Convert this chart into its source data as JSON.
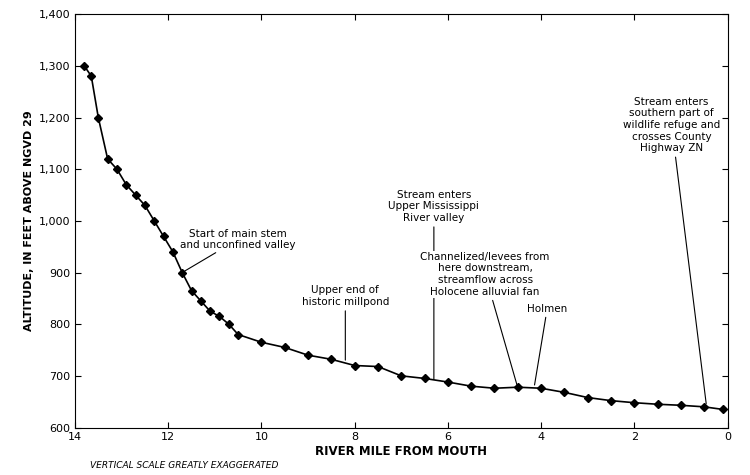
{
  "x": [
    13.8,
    13.65,
    13.5,
    13.3,
    13.1,
    12.9,
    12.7,
    12.5,
    12.3,
    12.1,
    11.9,
    11.7,
    11.5,
    11.3,
    11.1,
    10.9,
    10.7,
    10.5,
    10.0,
    9.5,
    9.0,
    8.5,
    8.0,
    7.5,
    7.0,
    6.5,
    6.0,
    5.5,
    5.0,
    4.5,
    4.0,
    3.5,
    3.0,
    2.5,
    2.0,
    1.5,
    1.0,
    0.5,
    0.1
  ],
  "y": [
    1300,
    1280,
    1200,
    1120,
    1100,
    1070,
    1050,
    1030,
    1000,
    970,
    940,
    900,
    865,
    845,
    825,
    815,
    800,
    780,
    765,
    755,
    740,
    732,
    720,
    718,
    700,
    695,
    688,
    680,
    676,
    678,
    676,
    668,
    658,
    652,
    648,
    645,
    643,
    640,
    635
  ],
  "xlim_left": 14,
  "xlim_right": 0,
  "ylim": [
    600,
    1400
  ],
  "xlabel": "RIVER MILE FROM MOUTH",
  "ylabel": "ALTITUDE, IN FEET ABOVE NGVD 29",
  "xticks": [
    0,
    2,
    4,
    6,
    8,
    10,
    12,
    14
  ],
  "yticks": [
    600,
    700,
    800,
    900,
    1000,
    1100,
    1200,
    1300,
    1400
  ],
  "ytick_labels": [
    "600",
    "700",
    "800",
    "900",
    "1,000",
    "1,100",
    "1,200",
    "1,300",
    "1,400"
  ],
  "note": "VERTICAL SCALE GREATLY EXAGGERATED",
  "annotations": [
    {
      "text": "Start of main stem\nand unconfined valley",
      "xy_x": 11.7,
      "xy_y": 900,
      "xt_x": 10.5,
      "xt_y": 985,
      "ha": "center"
    },
    {
      "text": "Upper end of\nhistoric millpond",
      "xy_x": 8.2,
      "xy_y": 725,
      "xt_x": 8.2,
      "xt_y": 875,
      "ha": "center"
    },
    {
      "text": "Stream enters\nUpper Mississippi\nRiver valley",
      "xy_x": 6.3,
      "xy_y": 688,
      "xt_x": 6.3,
      "xt_y": 1060,
      "ha": "center"
    },
    {
      "text": "Channelized/levees from\nhere downstream,\nstreamflow across\nHolocene alluvial fan",
      "xy_x": 4.5,
      "xy_y": 677,
      "xt_x": 5.2,
      "xt_y": 940,
      "ha": "center"
    },
    {
      "text": "Holmen",
      "xy_x": 4.15,
      "xy_y": 677,
      "xt_x": 4.3,
      "xt_y": 840,
      "ha": "left"
    },
    {
      "text": "Stream enters\nsouthern part of\nwildlife refuge and\ncrosses County\nHighway ZN",
      "xy_x": 0.45,
      "xy_y": 641,
      "xt_x": 1.2,
      "xt_y": 1240,
      "ha": "center"
    }
  ],
  "line_color": "#000000",
  "marker": "D",
  "markersize": 4,
  "bg_color": "#ffffff"
}
